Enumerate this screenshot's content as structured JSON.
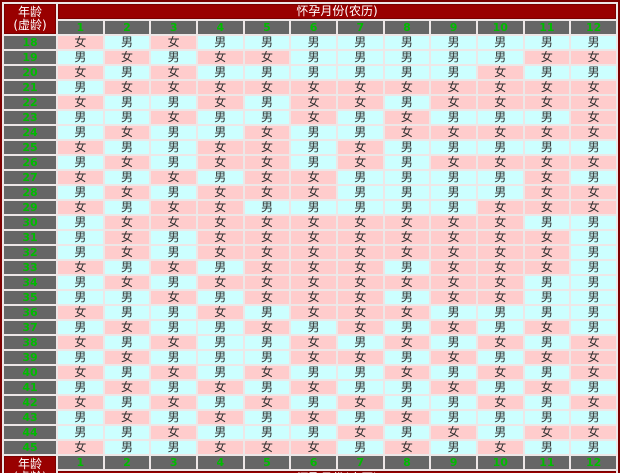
{
  "labels": {
    "age_line1": "年龄",
    "age_line2": "(虚龄)",
    "month_header": "怀孕月份(农历)",
    "boy": "男",
    "girl": "女"
  },
  "colors": {
    "frame": "#7a0000",
    "red": "#990000",
    "gray": "#666666",
    "green": "#00bb00",
    "boy_bg": "#ccffff",
    "girl_bg": "#ffcccc",
    "gap": "#ede7e7",
    "text": "#333333"
  },
  "chart_data": {
    "type": "table",
    "title": "怀孕月份(农历)",
    "row_header": "年龄(虚龄)",
    "columns": [
      "1",
      "2",
      "3",
      "4",
      "5",
      "6",
      "7",
      "8",
      "9",
      "10",
      "11",
      "12"
    ],
    "rows": [
      {
        "age": "18",
        "genders": [
          "女",
          "男",
          "女",
          "男",
          "男",
          "男",
          "男",
          "男",
          "男",
          "男",
          "男",
          "男"
        ]
      },
      {
        "age": "19",
        "genders": [
          "男",
          "女",
          "男",
          "女",
          "女",
          "男",
          "男",
          "男",
          "男",
          "男",
          "女",
          "女"
        ]
      },
      {
        "age": "20",
        "genders": [
          "女",
          "男",
          "女",
          "男",
          "男",
          "男",
          "男",
          "男",
          "男",
          "女",
          "男",
          "男"
        ]
      },
      {
        "age": "21",
        "genders": [
          "男",
          "女",
          "女",
          "女",
          "女",
          "女",
          "女",
          "女",
          "女",
          "女",
          "女",
          "女"
        ]
      },
      {
        "age": "22",
        "genders": [
          "女",
          "男",
          "男",
          "女",
          "男",
          "女",
          "女",
          "男",
          "女",
          "女",
          "女",
          "女"
        ]
      },
      {
        "age": "23",
        "genders": [
          "男",
          "男",
          "女",
          "男",
          "男",
          "女",
          "男",
          "女",
          "男",
          "男",
          "男",
          "女"
        ]
      },
      {
        "age": "24",
        "genders": [
          "男",
          "女",
          "男",
          "男",
          "女",
          "男",
          "男",
          "女",
          "女",
          "女",
          "女",
          "女"
        ]
      },
      {
        "age": "25",
        "genders": [
          "女",
          "男",
          "男",
          "女",
          "女",
          "男",
          "女",
          "男",
          "男",
          "男",
          "男",
          "男"
        ]
      },
      {
        "age": "26",
        "genders": [
          "男",
          "女",
          "男",
          "女",
          "女",
          "男",
          "女",
          "男",
          "女",
          "女",
          "女",
          "女"
        ]
      },
      {
        "age": "27",
        "genders": [
          "女",
          "男",
          "女",
          "男",
          "女",
          "女",
          "男",
          "男",
          "男",
          "男",
          "女",
          "男"
        ]
      },
      {
        "age": "28",
        "genders": [
          "男",
          "女",
          "男",
          "女",
          "女",
          "女",
          "男",
          "男",
          "男",
          "男",
          "女",
          "女"
        ]
      },
      {
        "age": "29",
        "genders": [
          "女",
          "男",
          "女",
          "女",
          "男",
          "男",
          "男",
          "男",
          "男",
          "女",
          "女",
          "女"
        ]
      },
      {
        "age": "30",
        "genders": [
          "男",
          "女",
          "女",
          "女",
          "女",
          "女",
          "女",
          "女",
          "女",
          "女",
          "男",
          "男"
        ]
      },
      {
        "age": "31",
        "genders": [
          "男",
          "女",
          "男",
          "女",
          "女",
          "女",
          "女",
          "女",
          "女",
          "女",
          "女",
          "男"
        ]
      },
      {
        "age": "32",
        "genders": [
          "男",
          "女",
          "男",
          "女",
          "女",
          "女",
          "女",
          "女",
          "女",
          "女",
          "女",
          "男"
        ]
      },
      {
        "age": "33",
        "genders": [
          "女",
          "男",
          "女",
          "男",
          "女",
          "女",
          "女",
          "男",
          "女",
          "女",
          "女",
          "男"
        ]
      },
      {
        "age": "34",
        "genders": [
          "男",
          "女",
          "男",
          "女",
          "女",
          "女",
          "女",
          "女",
          "女",
          "女",
          "男",
          "男"
        ]
      },
      {
        "age": "35",
        "genders": [
          "男",
          "男",
          "女",
          "男",
          "女",
          "女",
          "女",
          "男",
          "女",
          "女",
          "男",
          "男"
        ]
      },
      {
        "age": "36",
        "genders": [
          "女",
          "男",
          "男",
          "女",
          "男",
          "女",
          "女",
          "女",
          "男",
          "男",
          "男",
          "男"
        ]
      },
      {
        "age": "37",
        "genders": [
          "男",
          "女",
          "男",
          "男",
          "女",
          "男",
          "女",
          "男",
          "女",
          "男",
          "女",
          "男"
        ]
      },
      {
        "age": "38",
        "genders": [
          "女",
          "男",
          "女",
          "男",
          "男",
          "女",
          "男",
          "女",
          "男",
          "女",
          "男",
          "女"
        ]
      },
      {
        "age": "39",
        "genders": [
          "男",
          "女",
          "男",
          "男",
          "男",
          "女",
          "女",
          "男",
          "女",
          "男",
          "女",
          "女"
        ]
      },
      {
        "age": "40",
        "genders": [
          "女",
          "男",
          "女",
          "男",
          "女",
          "男",
          "男",
          "女",
          "男",
          "女",
          "男",
          "女"
        ]
      },
      {
        "age": "41",
        "genders": [
          "男",
          "女",
          "男",
          "女",
          "男",
          "女",
          "男",
          "男",
          "女",
          "男",
          "女",
          "男"
        ]
      },
      {
        "age": "42",
        "genders": [
          "女",
          "男",
          "女",
          "男",
          "女",
          "男",
          "女",
          "男",
          "男",
          "女",
          "男",
          "女"
        ]
      },
      {
        "age": "43",
        "genders": [
          "男",
          "女",
          "男",
          "女",
          "男",
          "女",
          "男",
          "女",
          "男",
          "男",
          "男",
          "男"
        ]
      },
      {
        "age": "44",
        "genders": [
          "男",
          "男",
          "女",
          "男",
          "男",
          "男",
          "女",
          "男",
          "女",
          "男",
          "女",
          "女"
        ]
      },
      {
        "age": "45",
        "genders": [
          "女",
          "男",
          "男",
          "女",
          "女",
          "女",
          "男",
          "女",
          "男",
          "女",
          "男",
          "男"
        ]
      }
    ]
  }
}
